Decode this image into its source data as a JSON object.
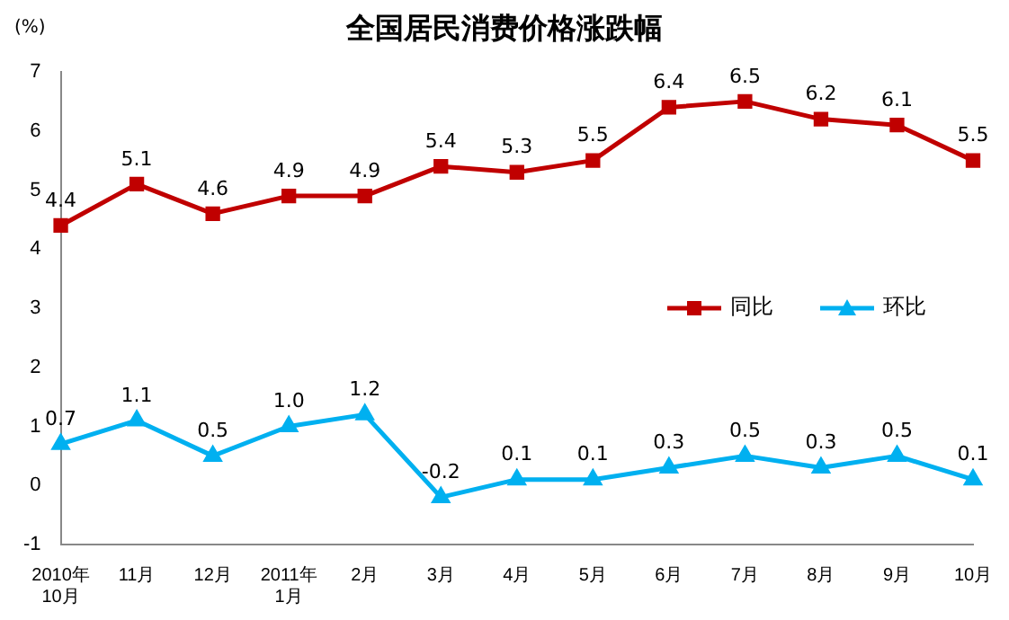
{
  "chart_data": {
    "type": "line",
    "title": "全国居民消费价格涨跌幅",
    "ylabel": "(%)",
    "categories": [
      "2010年\n10月",
      "11月",
      "12月",
      "2011年\n1月",
      "2月",
      "3月",
      "4月",
      "5月",
      "6月",
      "7月",
      "8月",
      "9月",
      "10月"
    ],
    "series": [
      {
        "name": "同比",
        "color": "#c00000",
        "marker": "square",
        "values": [
          4.4,
          5.1,
          4.6,
          4.9,
          4.9,
          5.4,
          5.3,
          5.5,
          6.4,
          6.5,
          6.2,
          6.1,
          5.5
        ]
      },
      {
        "name": "环比",
        "color": "#00b0f0",
        "marker": "triangle",
        "values": [
          0.7,
          1.1,
          0.5,
          1.0,
          1.2,
          -0.2,
          0.1,
          0.1,
          0.3,
          0.5,
          0.3,
          0.5,
          0.1
        ],
        "value_labels": [
          "0.7",
          "1.1",
          "0.5",
          "1.0",
          "1.2",
          "-0.2",
          "0.1",
          "0.1",
          "0.3",
          "0.5",
          "0.3",
          "0.5",
          "0.1"
        ]
      }
    ],
    "ylim": [
      -1,
      7
    ],
    "yticks": [
      -1,
      0,
      1,
      2,
      3,
      4,
      5,
      6,
      7
    ],
    "grid": false,
    "legend": "right",
    "data_labels": true,
    "line_style": "solid"
  }
}
